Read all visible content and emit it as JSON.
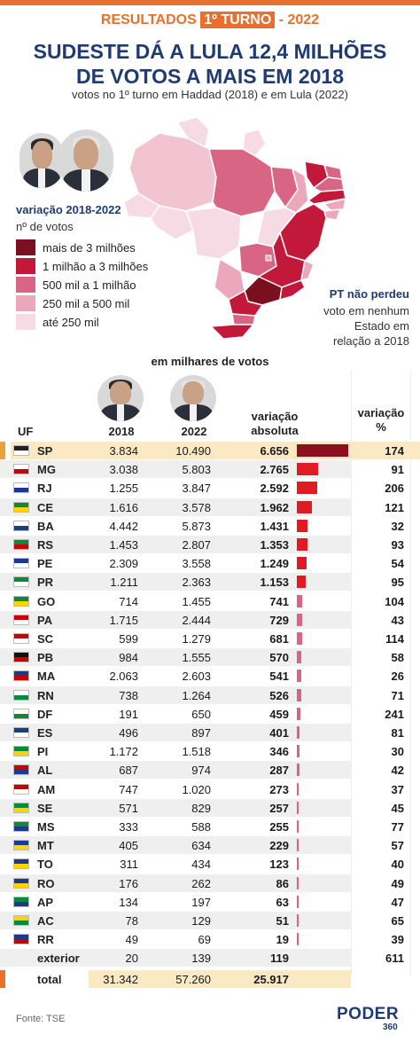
{
  "header": {
    "banner_left": "RESULTADOS ",
    "banner_highlight": "1º TURNO",
    "banner_right": " - 2022",
    "title_line1": "SUDESTE DÁ A LULA 12,4 MILHÕES",
    "title_line2": "DE VOTOS A MAIS EM 2018",
    "subtitle": "votos no 1º turno em Haddad (2018) e em Lula (2022)"
  },
  "legend": {
    "title": "variação 2018-2022",
    "subtitle": "nº de votos",
    "items": [
      {
        "label": "mais de 3 milhões",
        "color": "#7a0f1f"
      },
      {
        "label": "1 milhão a 3 milhões",
        "color": "#c2193a"
      },
      {
        "label": "500 mil a 1 milhão",
        "color": "#d96585"
      },
      {
        "label": "250 mil a 500 mil",
        "color": "#eba8bc"
      },
      {
        "label": "até 250 mil",
        "color": "#f7dbe4"
      }
    ]
  },
  "note": {
    "title": "PT não perdeu",
    "lines": [
      "voto em nenhum",
      "Estado em",
      "relação a 2018"
    ]
  },
  "table": {
    "units": "em milhares de votos",
    "headers": {
      "uf": "UF",
      "y2018": "2018",
      "y2022": "2022",
      "abs_line1": "variação",
      "abs_line2": "absoluta",
      "pct_line1": "variação",
      "pct_line2": "%"
    },
    "total": {
      "label": "total",
      "v2018": "31.342",
      "v2022": "57.260",
      "abs": "25.917"
    }
  },
  "colors": {
    "accent_orange": "#e8702a",
    "title_navy": "#1f3b70",
    "bar_dark": "#8b0f1f",
    "bar_red": "#e01b24",
    "bar_pink": "#d96585",
    "highlight_row": "#fbe9c4"
  },
  "chart_data": {
    "type": "table",
    "title": "SUDESTE DÁ A LULA 12,4 MILHÕES DE VOTOS A MAIS EM 2018",
    "units": "em milhares de votos",
    "columns": [
      "UF",
      "2018",
      "2022",
      "variação absoluta",
      "variação %"
    ],
    "rows": [
      {
        "uf": "SP",
        "v2018": "3.834",
        "v2022": "10.490",
        "abs": "6.656",
        "abs_value": 6656,
        "pct": "174",
        "flag": "sp-flag"
      },
      {
        "uf": "MG",
        "v2018": "3.038",
        "v2022": "5.803",
        "abs": "2.765",
        "abs_value": 2765,
        "pct": "91",
        "flag": "mg-flag"
      },
      {
        "uf": "RJ",
        "v2018": "1.255",
        "v2022": "3.847",
        "abs": "2.592",
        "abs_value": 2592,
        "pct": "206",
        "flag": "rj-flag"
      },
      {
        "uf": "CE",
        "v2018": "1.616",
        "v2022": "3.578",
        "abs": "1.962",
        "abs_value": 1962,
        "pct": "121",
        "flag": "ce-flag"
      },
      {
        "uf": "BA",
        "v2018": "4.442",
        "v2022": "5.873",
        "abs": "1.431",
        "abs_value": 1431,
        "pct": "32",
        "flag": "ba-flag"
      },
      {
        "uf": "RS",
        "v2018": "1.453",
        "v2022": "2.807",
        "abs": "1.353",
        "abs_value": 1353,
        "pct": "93",
        "flag": "rs-flag"
      },
      {
        "uf": "PE",
        "v2018": "2.309",
        "v2022": "3.558",
        "abs": "1.249",
        "abs_value": 1249,
        "pct": "54",
        "flag": "pe-flag"
      },
      {
        "uf": "PR",
        "v2018": "1.211",
        "v2022": "2.363",
        "abs": "1.153",
        "abs_value": 1153,
        "pct": "95",
        "flag": "pr-flag"
      },
      {
        "uf": "GO",
        "v2018": "714",
        "v2022": "1.455",
        "abs": "741",
        "abs_value": 741,
        "pct": "104",
        "flag": "go-flag"
      },
      {
        "uf": "PA",
        "v2018": "1.715",
        "v2022": "2.444",
        "abs": "729",
        "abs_value": 729,
        "pct": "43",
        "flag": "pa-flag"
      },
      {
        "uf": "SC",
        "v2018": "599",
        "v2022": "1.279",
        "abs": "681",
        "abs_value": 681,
        "pct": "114",
        "flag": "sc-flag"
      },
      {
        "uf": "PB",
        "v2018": "984",
        "v2022": "1.555",
        "abs": "570",
        "abs_value": 570,
        "pct": "58",
        "flag": "pb-flag"
      },
      {
        "uf": "MA",
        "v2018": "2.063",
        "v2022": "2.603",
        "abs": "541",
        "abs_value": 541,
        "pct": "26",
        "flag": "ma-flag"
      },
      {
        "uf": "RN",
        "v2018": "738",
        "v2022": "1.264",
        "abs": "526",
        "abs_value": 526,
        "pct": "71",
        "flag": "rn-flag"
      },
      {
        "uf": "DF",
        "v2018": "191",
        "v2022": "650",
        "abs": "459",
        "abs_value": 459,
        "pct": "241",
        "flag": "df-flag"
      },
      {
        "uf": "ES",
        "v2018": "496",
        "v2022": "897",
        "abs": "401",
        "abs_value": 401,
        "pct": "81",
        "flag": "es-flag"
      },
      {
        "uf": "PI",
        "v2018": "1.172",
        "v2022": "1.518",
        "abs": "346",
        "abs_value": 346,
        "pct": "30",
        "flag": "pi-flag"
      },
      {
        "uf": "AL",
        "v2018": "687",
        "v2022": "974",
        "abs": "287",
        "abs_value": 287,
        "pct": "42",
        "flag": "al-flag"
      },
      {
        "uf": "AM",
        "v2018": "747",
        "v2022": "1.020",
        "abs": "273",
        "abs_value": 273,
        "pct": "37",
        "flag": "am-flag"
      },
      {
        "uf": "SE",
        "v2018": "571",
        "v2022": "829",
        "abs": "257",
        "abs_value": 257,
        "pct": "45",
        "flag": "se-flag"
      },
      {
        "uf": "MS",
        "v2018": "333",
        "v2022": "588",
        "abs": "255",
        "abs_value": 255,
        "pct": "77",
        "flag": "ms-flag"
      },
      {
        "uf": "MT",
        "v2018": "405",
        "v2022": "634",
        "abs": "229",
        "abs_value": 229,
        "pct": "57",
        "flag": "mt-flag"
      },
      {
        "uf": "TO",
        "v2018": "311",
        "v2022": "434",
        "abs": "123",
        "abs_value": 123,
        "pct": "40",
        "flag": "to-flag"
      },
      {
        "uf": "RO",
        "v2018": "176",
        "v2022": "262",
        "abs": "86",
        "abs_value": 86,
        "pct": "49",
        "flag": "ro-flag"
      },
      {
        "uf": "AP",
        "v2018": "134",
        "v2022": "197",
        "abs": "63",
        "abs_value": 63,
        "pct": "47",
        "flag": "ap-flag"
      },
      {
        "uf": "AC",
        "v2018": "78",
        "v2022": "129",
        "abs": "51",
        "abs_value": 51,
        "pct": "65",
        "flag": "ac-flag"
      },
      {
        "uf": "RR",
        "v2018": "49",
        "v2022": "69",
        "abs": "19",
        "abs_value": 19,
        "pct": "39",
        "flag": "rr-flag"
      },
      {
        "uf": "exterior",
        "v2018": "20",
        "v2022": "139",
        "abs": "119",
        "abs_value": 119,
        "pct": "611",
        "flag": ""
      }
    ]
  },
  "footer": {
    "source": "Fonte: TSE",
    "logo_main": "PODER",
    "logo_num": "360"
  }
}
